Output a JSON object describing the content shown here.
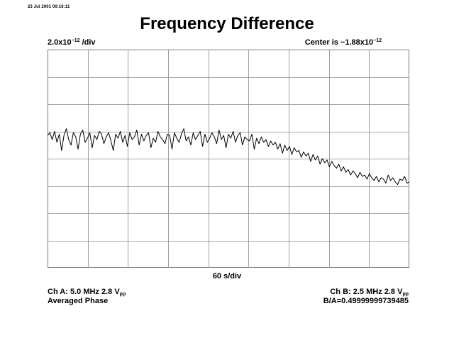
{
  "timestamp": "23 Jul 2001 00:16:11",
  "chart_data": {
    "type": "line",
    "title": "Frequency Difference",
    "y_scale": {
      "mantissa": "2.0x10",
      "exponent": "−12",
      "suffix": " /div"
    },
    "center": {
      "prefix": "Center is −1.88x10",
      "exponent": "−12"
    },
    "xlabel": "60 s/div",
    "x_unit": "s",
    "y_unit_per_div": 2e-12,
    "y_center": -1.88e-12,
    "xlim": [
      0,
      540
    ],
    "ylim_div": [
      -4,
      4
    ],
    "grid": true,
    "grid_divisions": {
      "x": 9,
      "y": 8
    },
    "series": [
      {
        "description": "noisy frequency difference trace, roughly flat in first two-thirds then trending downward",
        "y_div": [
          0.85,
          0.95,
          0.7,
          1.0,
          0.6,
          0.9,
          0.3,
          0.85,
          1.1,
          0.7,
          0.5,
          0.95,
          0.8,
          0.35,
          0.9,
          1.05,
          0.6,
          0.75,
          0.95,
          0.4,
          0.85,
          0.7,
          1.0,
          0.9,
          0.55,
          0.8,
          0.95,
          0.65,
          0.3,
          0.9,
          0.75,
          1.0,
          0.6,
          0.85,
          0.45,
          0.95,
          0.7,
          0.8,
          1.05,
          0.5,
          0.9,
          0.65,
          0.85,
          0.95,
          0.4,
          0.75,
          0.6,
          1.0,
          0.8,
          0.7,
          0.55,
          0.9,
          0.85,
          0.35,
          0.95,
          0.75,
          0.6,
          0.9,
          1.1,
          0.65,
          0.8,
          0.5,
          0.95,
          0.7,
          0.85,
          1.0,
          0.45,
          0.9,
          0.6,
          0.75,
          0.95,
          0.8,
          0.55,
          1.05,
          0.7,
          0.85,
          0.4,
          0.9,
          0.75,
          1.0,
          0.6,
          0.85,
          0.95,
          0.5,
          0.8,
          0.7,
          0.65,
          0.9,
          0.35,
          0.75,
          0.55,
          0.8,
          0.6,
          0.7,
          0.45,
          0.65,
          0.5,
          0.6,
          0.35,
          0.55,
          0.2,
          0.5,
          0.3,
          0.45,
          0.15,
          0.4,
          0.25,
          0.3,
          0.05,
          0.25,
          0.1,
          0.2,
          -0.1,
          0.15,
          -0.05,
          0.1,
          -0.2,
          0.0,
          -0.15,
          -0.05,
          -0.3,
          -0.1,
          -0.25,
          -0.35,
          -0.2,
          -0.45,
          -0.3,
          -0.5,
          -0.4,
          -0.6,
          -0.45,
          -0.55,
          -0.7,
          -0.5,
          -0.65,
          -0.6,
          -0.75,
          -0.55,
          -0.7,
          -0.8,
          -0.65,
          -0.85,
          -0.7,
          -0.75,
          -0.9,
          -0.6,
          -0.8,
          -0.7,
          -0.85,
          -0.95,
          -0.75,
          -0.8,
          -0.65,
          -0.9,
          -0.85
        ]
      }
    ]
  },
  "channels": {
    "a": {
      "prefix": "Ch A: 5.0 MHz 2.8 V",
      "sub": "pp",
      "mode": "Averaged Phase"
    },
    "b": {
      "prefix": "Ch B: 2.5 MHz 2.8 V",
      "sub": "pp",
      "ratio": "B/A=0.49999999739485"
    }
  }
}
